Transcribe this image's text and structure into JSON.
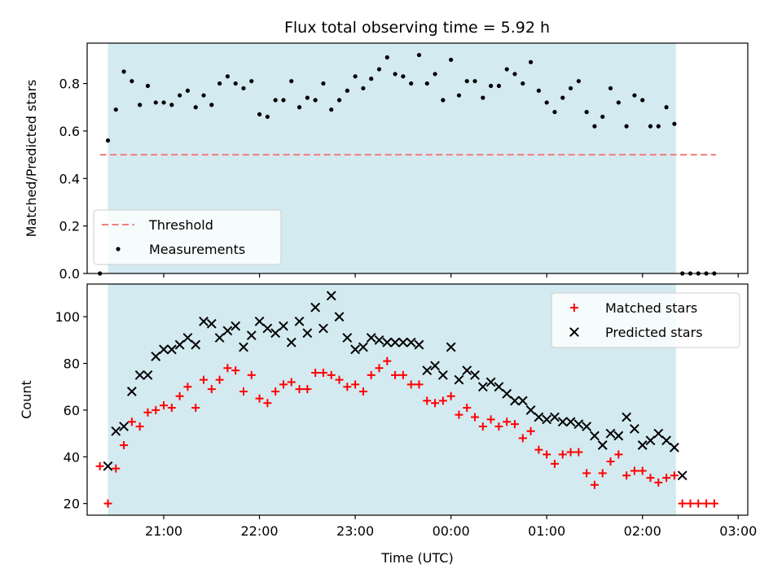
{
  "title": "Flux total observing time = 5.92 h",
  "chart_data": [
    {
      "type": "scatter",
      "ylabel": "Matched/Predicted stars",
      "xlabel": "",
      "xlim": [
        "20:12",
        "03:06"
      ],
      "ylim": [
        0,
        0.97
      ],
      "yticks": [
        0.0,
        0.2,
        0.4,
        0.6,
        0.8
      ],
      "ytick_labels": [
        "0.0",
        "0.2",
        "0.4",
        "0.6",
        "0.8"
      ],
      "shaded_span": [
        "20:25",
        "02:21"
      ],
      "shaded_color": "#d3eaf0",
      "threshold": {
        "name": "Threshold",
        "y": 0.5,
        "x": [
          "20:20",
          "02:46"
        ],
        "color": "#f47c7c"
      },
      "legend": {
        "placement": "lower-left",
        "entries": [
          "Threshold",
          "Measurements"
        ]
      },
      "series": [
        {
          "name": "Measurements",
          "color": "#000000",
          "x": [
            "20:20",
            "20:25",
            "20:30",
            "20:35",
            "20:40",
            "20:45",
            "20:50",
            "20:55",
            "21:00",
            "21:05",
            "21:10",
            "21:15",
            "21:20",
            "21:25",
            "21:30",
            "21:35",
            "21:40",
            "21:45",
            "21:50",
            "21:55",
            "22:00",
            "22:05",
            "22:10",
            "22:15",
            "22:20",
            "22:25",
            "22:30",
            "22:35",
            "22:40",
            "22:45",
            "22:50",
            "22:55",
            "23:00",
            "23:05",
            "23:10",
            "23:15",
            "23:20",
            "23:25",
            "23:30",
            "23:35",
            "23:40",
            "23:45",
            "23:50",
            "23:55",
            "00:00",
            "00:05",
            "00:10",
            "00:15",
            "00:20",
            "00:25",
            "00:30",
            "00:35",
            "00:40",
            "00:45",
            "00:50",
            "00:55",
            "01:00",
            "01:05",
            "01:10",
            "01:15",
            "01:20",
            "01:25",
            "01:30",
            "01:35",
            "01:40",
            "01:45",
            "01:50",
            "01:55",
            "02:00",
            "02:05",
            "02:10",
            "02:15",
            "02:20",
            "02:25",
            "02:30",
            "02:35",
            "02:40",
            "02:45"
          ],
          "y": [
            0.0,
            0.56,
            0.69,
            0.85,
            0.81,
            0.71,
            0.79,
            0.72,
            0.72,
            0.71,
            0.75,
            0.77,
            0.7,
            0.75,
            0.71,
            0.8,
            0.83,
            0.8,
            0.78,
            0.81,
            0.67,
            0.66,
            0.73,
            0.73,
            0.81,
            0.7,
            0.74,
            0.73,
            0.8,
            0.69,
            0.73,
            0.77,
            0.83,
            0.78,
            0.82,
            0.86,
            0.91,
            0.84,
            0.83,
            0.8,
            0.92,
            0.8,
            0.84,
            0.73,
            0.9,
            0.75,
            0.81,
            0.81,
            0.74,
            0.79,
            0.79,
            0.86,
            0.84,
            0.8,
            0.89,
            0.77,
            0.72,
            0.68,
            0.74,
            0.78,
            0.81,
            0.68,
            0.62,
            0.66,
            0.78,
            0.72,
            0.62,
            0.75,
            0.73,
            0.62,
            0.62,
            0.7,
            0.63,
            0.0,
            0.0,
            0.0,
            0.0,
            0.0
          ]
        }
      ]
    },
    {
      "type": "scatter",
      "ylabel": "Count",
      "xlabel": "Time (UTC)",
      "xlim": [
        "20:12",
        "03:06"
      ],
      "ylim": [
        15,
        114
      ],
      "yticks": [
        20,
        40,
        60,
        80,
        100
      ],
      "ytick_labels": [
        "20",
        "40",
        "60",
        "80",
        "100"
      ],
      "xticks": [
        "21:00",
        "22:00",
        "23:00",
        "00:00",
        "01:00",
        "02:00",
        "03:00"
      ],
      "shaded_span": [
        "20:25",
        "02:21"
      ],
      "shaded_color": "#d3eaf0",
      "legend": {
        "placement": "upper-right",
        "entries": [
          "Matched stars",
          "Predicted stars"
        ]
      },
      "series": [
        {
          "name": "Matched stars",
          "marker": "+",
          "color": "#ff0000",
          "x": [
            "20:20",
            "20:25",
            "20:30",
            "20:35",
            "20:40",
            "20:45",
            "20:50",
            "20:55",
            "21:00",
            "21:05",
            "21:10",
            "21:15",
            "21:20",
            "21:25",
            "21:30",
            "21:35",
            "21:40",
            "21:45",
            "21:50",
            "21:55",
            "22:00",
            "22:05",
            "22:10",
            "22:15",
            "22:20",
            "22:25",
            "22:30",
            "22:35",
            "22:40",
            "22:45",
            "22:50",
            "22:55",
            "23:00",
            "23:05",
            "23:10",
            "23:15",
            "23:20",
            "23:25",
            "23:30",
            "23:35",
            "23:40",
            "23:45",
            "23:50",
            "23:55",
            "00:00",
            "00:05",
            "00:10",
            "00:15",
            "00:20",
            "00:25",
            "00:30",
            "00:35",
            "00:40",
            "00:45",
            "00:50",
            "00:55",
            "01:00",
            "01:05",
            "01:10",
            "01:15",
            "01:20",
            "01:25",
            "01:30",
            "01:35",
            "01:40",
            "01:45",
            "01:50",
            "01:55",
            "02:00",
            "02:05",
            "02:10",
            "02:15",
            "02:20",
            "02:25",
            "02:30",
            "02:35",
            "02:40",
            "02:45"
          ],
          "y": [
            36,
            20,
            35,
            45,
            55,
            53,
            59,
            60,
            62,
            61,
            66,
            70,
            61,
            73,
            69,
            73,
            78,
            77,
            68,
            75,
            65,
            63,
            68,
            71,
            72,
            69,
            69,
            76,
            76,
            75,
            73,
            70,
            71,
            68,
            75,
            78,
            81,
            75,
            75,
            71,
            71,
            64,
            63,
            64,
            66,
            58,
            61,
            57,
            53,
            56,
            53,
            55,
            54,
            48,
            51,
            43,
            41,
            37,
            41,
            42,
            42,
            33,
            28,
            33,
            38,
            41,
            32,
            34,
            34,
            31,
            29,
            31,
            32,
            20,
            20,
            20,
            20,
            20
          ]
        },
        {
          "name": "Predicted stars",
          "marker": "x",
          "color": "#000000",
          "x": [
            "20:25",
            "20:30",
            "20:35",
            "20:40",
            "20:45",
            "20:50",
            "20:55",
            "21:00",
            "21:05",
            "21:10",
            "21:15",
            "21:20",
            "21:25",
            "21:30",
            "21:35",
            "21:40",
            "21:45",
            "21:50",
            "21:55",
            "22:00",
            "22:05",
            "22:10",
            "22:15",
            "22:20",
            "22:25",
            "22:30",
            "22:35",
            "22:40",
            "22:45",
            "22:50",
            "22:55",
            "23:00",
            "23:05",
            "23:10",
            "23:15",
            "23:20",
            "23:25",
            "23:30",
            "23:35",
            "23:40",
            "23:45",
            "23:50",
            "23:55",
            "00:00",
            "00:05",
            "00:10",
            "00:15",
            "00:20",
            "00:25",
            "00:30",
            "00:35",
            "00:40",
            "00:45",
            "00:50",
            "00:55",
            "01:00",
            "01:05",
            "01:10",
            "01:15",
            "01:20",
            "01:25",
            "01:30",
            "01:35",
            "01:40",
            "01:45",
            "01:50",
            "01:55",
            "02:00",
            "02:05",
            "02:10",
            "02:15",
            "02:20"
          ],
          "y": [
            36,
            51,
            53,
            68,
            75,
            75,
            83,
            86,
            86,
            88,
            91,
            88,
            98,
            97,
            91,
            94,
            96,
            87,
            92,
            98,
            95,
            93,
            96,
            89,
            98,
            93,
            104,
            95,
            109,
            100,
            91,
            86,
            87,
            91,
            90,
            89,
            89,
            89,
            89,
            88,
            77,
            79,
            75,
            87,
            73,
            77,
            75,
            70,
            72,
            70,
            67,
            64,
            64,
            60,
            57,
            56,
            57,
            55,
            55,
            54,
            53,
            49,
            45,
            50,
            49,
            57,
            52,
            45,
            47,
            50,
            47,
            44
          ]
        },
        {
          "name": "",
          "marker": "x",
          "color": "#000000",
          "x": [
            "02:25"
          ],
          "y": [
            32
          ]
        }
      ]
    }
  ]
}
